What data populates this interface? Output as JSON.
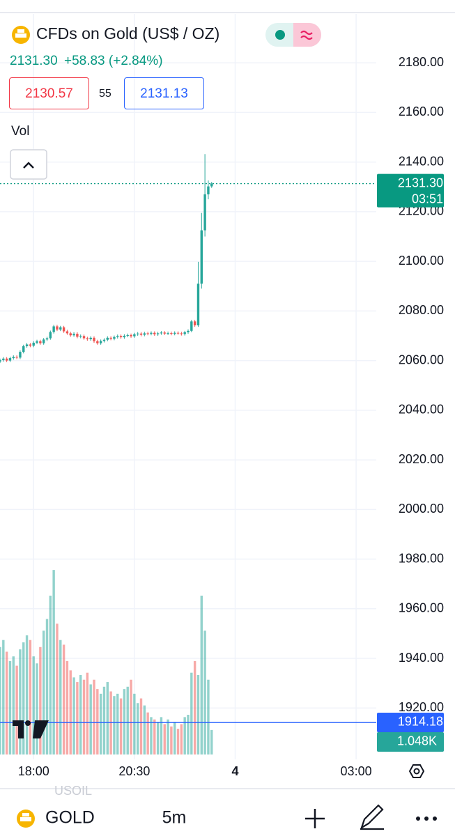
{
  "header": {
    "title": "CFDs on Gold (US$ / OZ)",
    "price": "2131.30",
    "change": "+58.83",
    "change_pct": "(+2.84%)",
    "bid": "2130.57",
    "spread": "55",
    "ask": "2131.13",
    "volume_label": "Vol"
  },
  "chart_data": {
    "type": "candlestick",
    "x": [
      0,
      1,
      2,
      3,
      4,
      5,
      6,
      7,
      8,
      9,
      10,
      11,
      12,
      13,
      14,
      15,
      16,
      17,
      18,
      19,
      20,
      21,
      22,
      23,
      24,
      25,
      26,
      27,
      28,
      29,
      30,
      31,
      32,
      33,
      34,
      35,
      36,
      37,
      38,
      39,
      40,
      41,
      42,
      43,
      44,
      45,
      46,
      47,
      48,
      49,
      50,
      51,
      52,
      53,
      54,
      55,
      56,
      57,
      58,
      59,
      60,
      61,
      62,
      63
    ],
    "open": [
      2059.6,
      2060.2,
      2060.8,
      2060.0,
      2061.0,
      2061.5,
      2061.2,
      2063.5,
      2065.8,
      2066.5,
      2066.0,
      2067.2,
      2067.8,
      2067.0,
      2068.5,
      2069.0,
      2071.5,
      2073.8,
      2072.5,
      2073.4,
      2071.8,
      2071.0,
      2070.2,
      2070.8,
      2069.6,
      2069.9,
      2069.0,
      2068.6,
      2069.2,
      2067.8,
      2067.0,
      2067.9,
      2068.4,
      2069.2,
      2068.8,
      2069.5,
      2069.9,
      2069.4,
      2070.0,
      2070.3,
      2069.8,
      2070.6,
      2070.9,
      2070.4,
      2071.0,
      2070.8,
      2071.2,
      2070.6,
      2071.0,
      2071.3,
      2070.9,
      2071.1,
      2070.8,
      2071.2,
      2071.0,
      2070.7,
      2071.4,
      2072.0,
      2075.8,
      2074.2,
      2091.0,
      2112.5,
      2127.0,
      2130.2
    ],
    "high": [
      2060.8,
      2061.4,
      2061.4,
      2061.6,
      2062.1,
      2062.1,
      2064.1,
      2066.4,
      2067.1,
      2067.1,
      2067.8,
      2068.4,
      2068.4,
      2069.1,
      2069.6,
      2072.1,
      2074.4,
      2074.4,
      2074.0,
      2074.0,
      2072.4,
      2071.6,
      2071.4,
      2071.4,
      2070.5,
      2070.5,
      2069.6,
      2069.8,
      2069.8,
      2068.4,
      2068.5,
      2069.0,
      2069.8,
      2069.8,
      2070.1,
      2070.5,
      2070.5,
      2070.6,
      2070.9,
      2070.9,
      2071.2,
      2071.5,
      2071.5,
      2071.6,
      2071.6,
      2071.8,
      2071.8,
      2071.6,
      2071.9,
      2071.9,
      2071.7,
      2071.7,
      2071.8,
      2071.8,
      2071.6,
      2072.0,
      2072.6,
      2076.4,
      2076.4,
      2099.8,
      2119.5,
      2143.2,
      2132.6,
      2132.0
    ],
    "low": [
      2059.0,
      2059.6,
      2059.4,
      2059.4,
      2060.4,
      2060.6,
      2060.6,
      2062.9,
      2065.2,
      2065.4,
      2065.4,
      2066.6,
      2066.4,
      2066.4,
      2067.9,
      2068.4,
      2070.9,
      2071.9,
      2071.9,
      2071.2,
      2070.4,
      2069.6,
      2069.6,
      2069.0,
      2069.0,
      2068.4,
      2068.0,
      2068.0,
      2067.2,
      2066.4,
      2066.4,
      2067.3,
      2067.8,
      2068.2,
      2068.2,
      2068.9,
      2068.8,
      2068.8,
      2069.4,
      2069.2,
      2069.2,
      2070.0,
      2069.8,
      2069.8,
      2070.2,
      2070.2,
      2070.0,
      2070.0,
      2070.4,
      2070.3,
      2070.3,
      2070.2,
      2070.2,
      2070.4,
      2070.1,
      2070.1,
      2070.8,
      2071.4,
      2073.6,
      2073.6,
      2089.0,
      2110.0,
      2125.0,
      2129.6
    ],
    "close": [
      2060.2,
      2060.8,
      2060.0,
      2061.0,
      2061.5,
      2061.2,
      2063.5,
      2065.8,
      2066.5,
      2066.0,
      2067.2,
      2067.8,
      2067.0,
      2068.5,
      2069.0,
      2071.5,
      2073.8,
      2072.5,
      2073.4,
      2071.8,
      2071.0,
      2070.2,
      2070.8,
      2069.6,
      2069.9,
      2069.0,
      2068.6,
      2069.2,
      2067.8,
      2067.0,
      2067.9,
      2068.4,
      2069.2,
      2068.8,
      2069.5,
      2069.9,
      2069.4,
      2070.0,
      2070.3,
      2069.8,
      2070.6,
      2070.9,
      2070.4,
      2071.0,
      2070.8,
      2071.2,
      2070.6,
      2071.0,
      2071.3,
      2070.9,
      2071.1,
      2070.8,
      2071.2,
      2071.0,
      2070.7,
      2071.4,
      2072.0,
      2075.8,
      2074.2,
      2091.0,
      2112.5,
      2127.0,
      2130.2,
      2131.3
    ],
    "volume": [
      4.6,
      4.9,
      4.4,
      4.0,
      4.2,
      3.8,
      4.5,
      4.8,
      5.1,
      4.9,
      4.2,
      3.9,
      4.6,
      5.3,
      5.8,
      6.8,
      7.9,
      5.6,
      4.9,
      4.7,
      4.0,
      3.6,
      3.3,
      3.1,
      3.4,
      3.2,
      3.5,
      3.0,
      3.2,
      2.8,
      2.6,
      2.9,
      3.1,
      2.7,
      2.5,
      2.6,
      2.4,
      2.8,
      2.9,
      3.2,
      2.6,
      2.2,
      2.4,
      2.1,
      1.8,
      1.6,
      1.5,
      1.4,
      1.6,
      1.3,
      1.5,
      1.2,
      1.4,
      1.1,
      1.3,
      1.6,
      1.7,
      3.5,
      4.0,
      3.4,
      6.8,
      5.3,
      3.2,
      1.048
    ],
    "volume_lim": [
      0,
      8.5
    ],
    "up_color": "#26a69a",
    "down_color": "#ef5350",
    "xlim": [
      0,
      112
    ],
    "xticks": [
      {
        "value": 10,
        "label": "18:00"
      },
      {
        "value": 40,
        "label": "20:30"
      },
      {
        "value": 70,
        "label": "4"
      },
      {
        "value": 106,
        "label": "03:00"
      }
    ],
    "ylim": [
      1899.3,
      2199.7
    ],
    "yticks": [
      {
        "value": 1920,
        "label": "1920.00"
      },
      {
        "value": 1940,
        "label": "1940.00"
      },
      {
        "value": 1960,
        "label": "1960.00"
      },
      {
        "value": 1980,
        "label": "1980.00"
      },
      {
        "value": 2000,
        "label": "2000.00"
      },
      {
        "value": 2020,
        "label": "2020.00"
      },
      {
        "value": 2040,
        "label": "2040.00"
      },
      {
        "value": 2060,
        "label": "2060.00"
      },
      {
        "value": 2080,
        "label": "2080.00"
      },
      {
        "value": 2100,
        "label": "2100.00"
      },
      {
        "value": 2120,
        "label": "2120.00"
      },
      {
        "value": 2140,
        "label": "2140.00"
      },
      {
        "value": 2160,
        "label": "2160.00"
      },
      {
        "value": 2180,
        "label": "2180.00"
      }
    ],
    "grid": true,
    "last_price_label": "2131.30",
    "countdown": "03:51",
    "current_volume_label": "1.048K",
    "alert_line": {
      "value": 1914.18,
      "label": "1914.18"
    }
  },
  "footer": {
    "symbol": "GOLD",
    "interval": "5m",
    "faded_symbol": "USOIL"
  }
}
